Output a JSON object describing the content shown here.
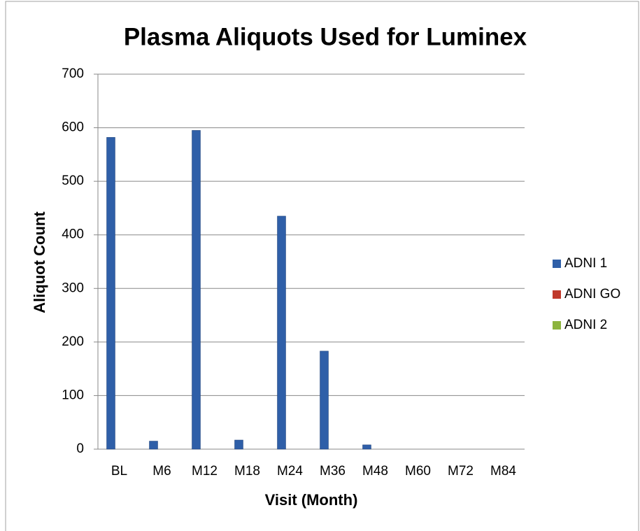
{
  "chart_data": {
    "type": "bar",
    "title": "Plasma Aliquots Used for Luminex",
    "x_label": "Visit (Month)",
    "y_label": "Aliquot Count",
    "categories": [
      "BL",
      "M6",
      "M12",
      "M18",
      "M24",
      "M36",
      "M48",
      "M60",
      "M72",
      "M84"
    ],
    "series": [
      {
        "name": "ADNI 1",
        "color": "#2f5fa8",
        "values": [
          582,
          15,
          595,
          17,
          435,
          183,
          8,
          0,
          0,
          0
        ]
      },
      {
        "name": "ADNI GO",
        "color": "#c0392b",
        "values": [
          0,
          0,
          0,
          0,
          0,
          0,
          0,
          0,
          0,
          0
        ]
      },
      {
        "name": "ADNI 2",
        "color": "#8db43e",
        "values": [
          0,
          0,
          0,
          0,
          0,
          0,
          0,
          0,
          0,
          0
        ]
      }
    ],
    "ylim": [
      0,
      700
    ],
    "yticks": [
      0,
      100,
      200,
      300,
      400,
      500,
      600,
      700
    ],
    "grid": true,
    "legend": "right"
  }
}
